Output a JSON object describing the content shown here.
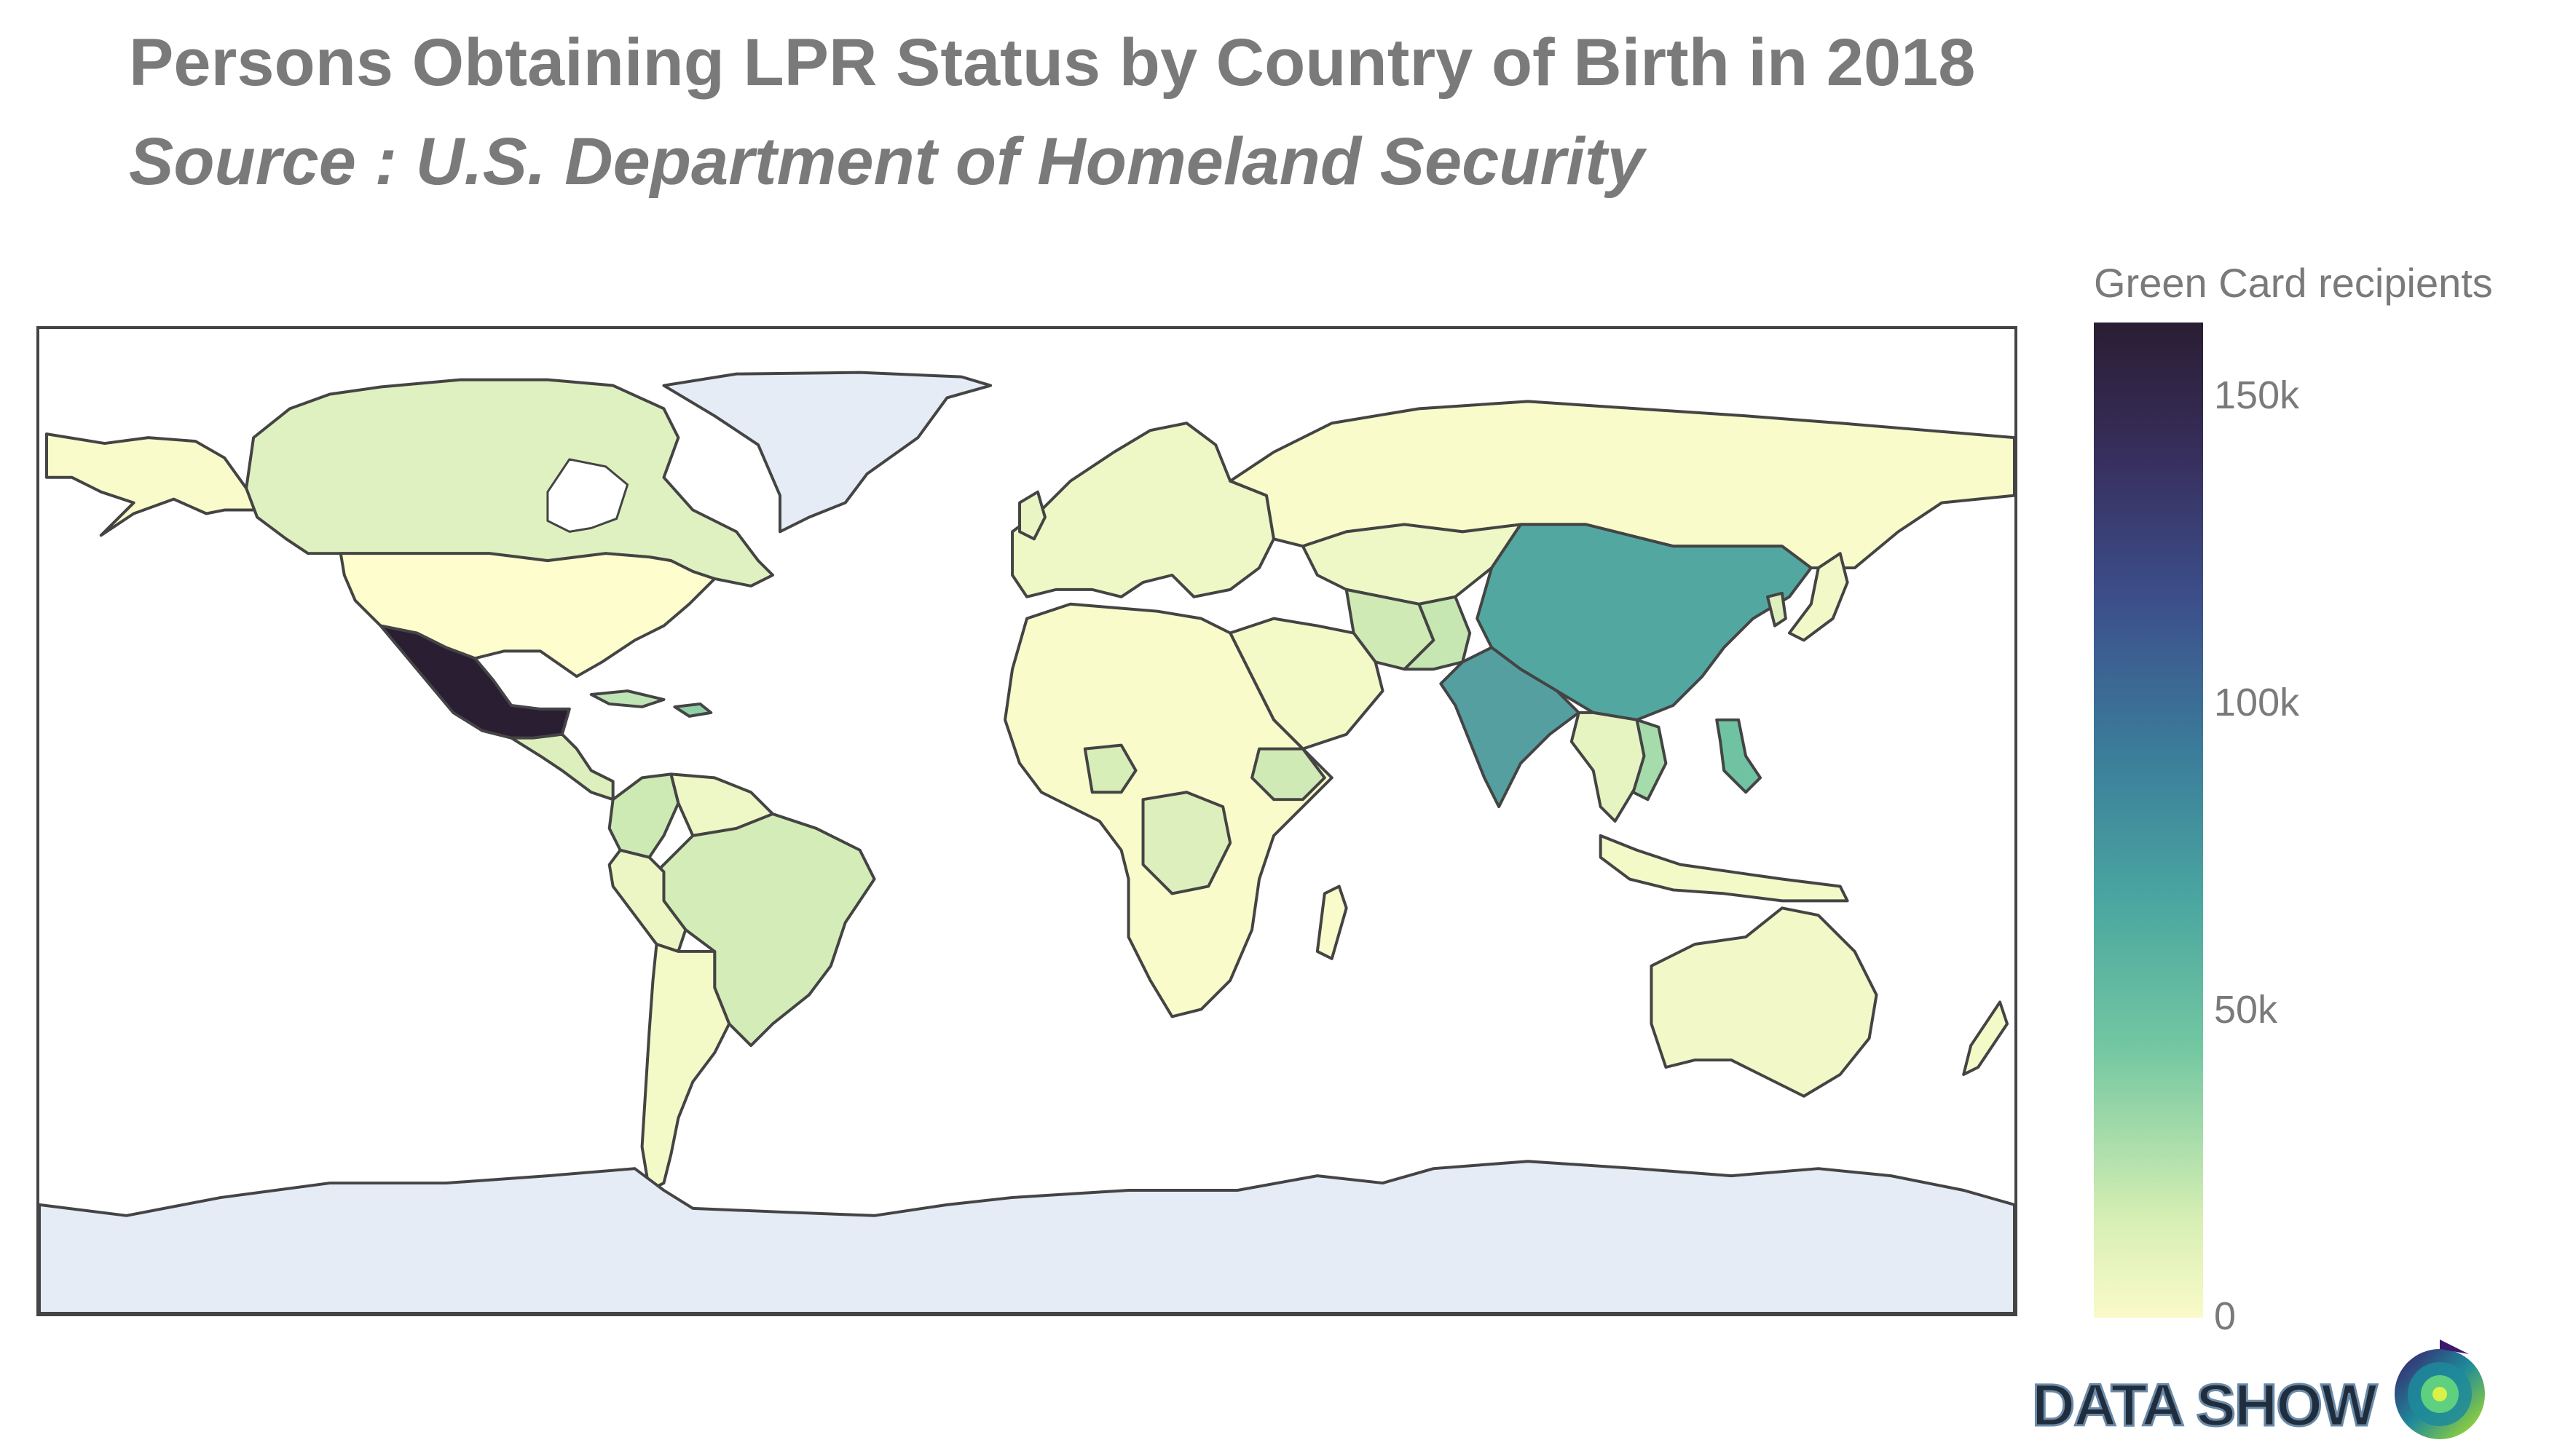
{
  "title": "Persons Obtaining LPR Status by Country of Birth in 2018",
  "subtitle": "Source : U.S. Department of Homeland Security",
  "colorbar": {
    "title": "Green Card recipients",
    "ticks": [
      {
        "label": "150k",
        "value": 150000
      },
      {
        "label": "100k",
        "value": 100000
      },
      {
        "label": "50k",
        "value": 50000
      },
      {
        "label": "0",
        "value": 0
      }
    ],
    "min": 0,
    "max": 162000,
    "colors": [
      "#fafac8",
      "#d6efb3",
      "#73c7a1",
      "#4aa6a0",
      "#3b7c9a",
      "#3c4f8b",
      "#372e5c",
      "#2a1e33"
    ]
  },
  "logo": {
    "text": "DATA SHOW"
  },
  "colors": {
    "title": "#7a7a7a",
    "border": "#444444",
    "no_data": "#e5ecf6",
    "ocean": "#ffffff"
  },
  "map_data": {
    "type": "choropleth",
    "metric": "Green Card recipients",
    "regions": [
      {
        "region": "Mexico",
        "value": 161858
      },
      {
        "region": "China",
        "value": 65214
      },
      {
        "region": "India",
        "value": 59821
      },
      {
        "region": "Philippines",
        "value": 47258
      },
      {
        "region": "Vietnam",
        "value": 33834
      },
      {
        "region": "Cuba",
        "value": 76486
      },
      {
        "region": "Dominican Republic",
        "value": 57413
      },
      {
        "region": "Canada",
        "value": 11000
      },
      {
        "region": "Brazil",
        "value": 14000
      },
      {
        "region": "Colombia",
        "value": 18000
      },
      {
        "region": "Ethiopia",
        "value": 12000
      },
      {
        "region": "Iran",
        "value": 12000
      },
      {
        "region": "Pakistan",
        "value": 15000
      },
      {
        "region": "Afghanistan",
        "value": 11000
      },
      {
        "region": "Iraq",
        "value": 10000
      },
      {
        "region": "DR Congo",
        "value": 13000
      },
      {
        "region": "Nigeria",
        "value": 13000
      },
      {
        "region": "United States",
        "value": 1000
      },
      {
        "region": "Australia",
        "value": 4000
      },
      {
        "region": "Russia",
        "value": 5000
      }
    ],
    "no_data_regions": [
      "Greenland",
      "Antarctica"
    ]
  }
}
